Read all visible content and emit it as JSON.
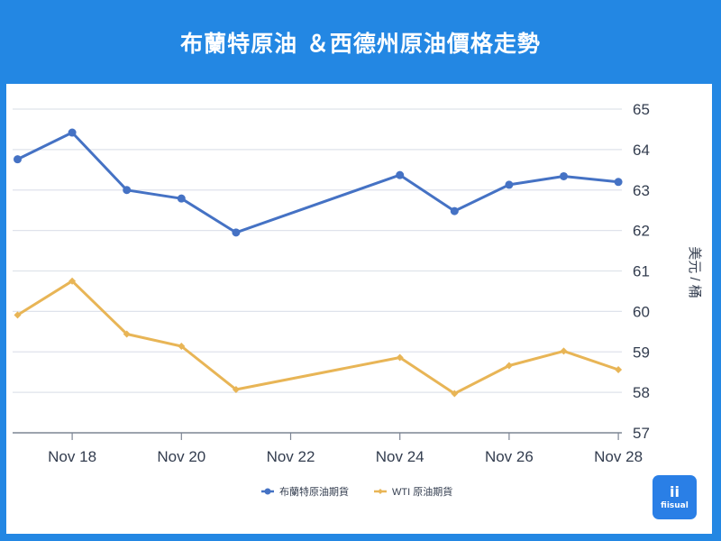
{
  "header": {
    "title": "布蘭特原油 ＆西德州原油價格走勢"
  },
  "colors": {
    "frame": "#2387e3",
    "brent": "#4572c4",
    "wti": "#e8b556",
    "grid": "#dfe3eb",
    "text": "#333d4f"
  },
  "legend": {
    "items": [
      {
        "label": "布蘭特原油期貨",
        "color": "#4572c4",
        "marker": "circle"
      },
      {
        "label": "WTI 原油期貨",
        "color": "#e8b556",
        "marker": "diamond"
      }
    ]
  },
  "watermark": {
    "glyph": "ii",
    "text": "fiisual"
  },
  "chart_data": {
    "type": "line",
    "title": "布蘭特原油 ＆西德州原油價格走勢",
    "xlabel": "",
    "ylabel": "美元 / 桶",
    "y_axis_position": "right",
    "ylim": [
      57,
      65
    ],
    "yticks": [
      57,
      58,
      59,
      60,
      61,
      62,
      63,
      64,
      65
    ],
    "grid": true,
    "legend_position": "bottom",
    "x": [
      "Nov 17",
      "Nov 18",
      "Nov 19",
      "Nov 20",
      "Nov 21",
      "Nov 24",
      "Nov 25",
      "Nov 26",
      "Nov 27",
      "Nov 28"
    ],
    "x_day": [
      17,
      18,
      19,
      20,
      21,
      24,
      25,
      26,
      27,
      28
    ],
    "xtick_labels": [
      "Nov 18",
      "Nov 20",
      "Nov 22",
      "Nov 24",
      "Nov 26",
      "Nov 28"
    ],
    "xtick_days": [
      18,
      20,
      22,
      24,
      26,
      28
    ],
    "series": [
      {
        "name": "布蘭特原油期貨",
        "values": [
          63.76,
          64.42,
          63.0,
          62.79,
          61.95,
          63.37,
          62.48,
          63.13,
          63.34,
          63.2
        ]
      },
      {
        "name": "WTI 原油期貨",
        "values": [
          59.91,
          60.75,
          59.44,
          59.14,
          58.07,
          58.86,
          57.97,
          58.66,
          59.02,
          58.56
        ]
      }
    ]
  }
}
